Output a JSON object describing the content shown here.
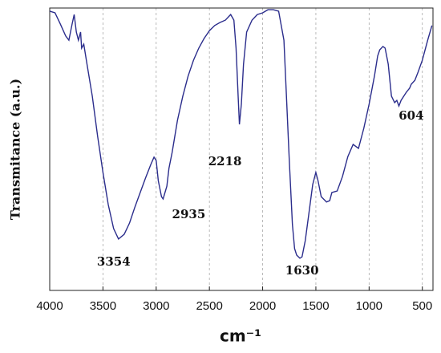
{
  "chart_data": {
    "type": "line",
    "y_label": "Transmitance (a.u.)",
    "x_label": "cm⁻¹",
    "xlim": [
      4000,
      400
    ],
    "ylim": [
      0,
      100
    ],
    "xticks": [
      4000,
      3500,
      3000,
      2500,
      2000,
      1500,
      1000,
      500
    ],
    "grid": true,
    "series": [
      {
        "color": "#2b2d8c",
        "x": [
          4000,
          3950,
          3900,
          3850,
          3820,
          3790,
          3770,
          3750,
          3730,
          3710,
          3700,
          3680,
          3650,
          3600,
          3550,
          3500,
          3450,
          3400,
          3354,
          3300,
          3250,
          3200,
          3150,
          3100,
          3050,
          3020,
          3000,
          2980,
          2950,
          2935,
          2900,
          2880,
          2850,
          2800,
          2750,
          2700,
          2650,
          2600,
          2550,
          2500,
          2450,
          2400,
          2350,
          2300,
          2270,
          2250,
          2230,
          2218,
          2200,
          2180,
          2150,
          2100,
          2050,
          2000,
          1950,
          1900,
          1850,
          1800,
          1780,
          1750,
          1720,
          1700,
          1680,
          1650,
          1630,
          1600,
          1570,
          1530,
          1500,
          1480,
          1450,
          1400,
          1370,
          1350,
          1300,
          1250,
          1200,
          1150,
          1100,
          1050,
          1000,
          950,
          920,
          900,
          870,
          850,
          820,
          790,
          760,
          740,
          720,
          700,
          650,
          620,
          604,
          570,
          540,
          500,
          450,
          410
        ],
        "values": [
          98.9,
          98.3,
          94.3,
          90.1,
          88.6,
          94.3,
          97.7,
          91.5,
          88.6,
          91.5,
          85.8,
          87.2,
          80.1,
          68.8,
          54.5,
          41.8,
          30.4,
          21.9,
          18.2,
          19.9,
          23.9,
          29.5,
          34.7,
          39.8,
          44.6,
          47.2,
          46.0,
          38.9,
          33.2,
          32.4,
          36.9,
          43.2,
          48.9,
          60.2,
          68.8,
          75.9,
          81.5,
          85.8,
          89.2,
          92.0,
          93.8,
          94.9,
          95.7,
          97.7,
          95.7,
          85.8,
          68.8,
          58.8,
          65.9,
          80.1,
          91.5,
          95.7,
          97.7,
          98.3,
          99.4,
          99.4,
          98.9,
          88.6,
          71.6,
          46.0,
          23.3,
          14.8,
          12.5,
          11.4,
          11.9,
          17.6,
          26.1,
          37.5,
          41.8,
          38.9,
          33.2,
          31.3,
          31.8,
          34.7,
          35.2,
          40.3,
          47.4,
          51.7,
          50.3,
          57.4,
          65.9,
          75.9,
          83.0,
          85.2,
          86.4,
          85.8,
          80.1,
          68.8,
          66.5,
          67.3,
          65.3,
          67.3,
          70.2,
          71.6,
          73.0,
          74.4,
          77.3,
          81.5,
          88.6,
          93.8
        ]
      }
    ],
    "annotations": [
      {
        "text": "3354",
        "x": 3354
      },
      {
        "text": "2935",
        "x": 2935
      },
      {
        "text": "2218",
        "x": 2218
      },
      {
        "text": "1630",
        "x": 1630
      },
      {
        "text": "604",
        "x": 604
      }
    ]
  }
}
